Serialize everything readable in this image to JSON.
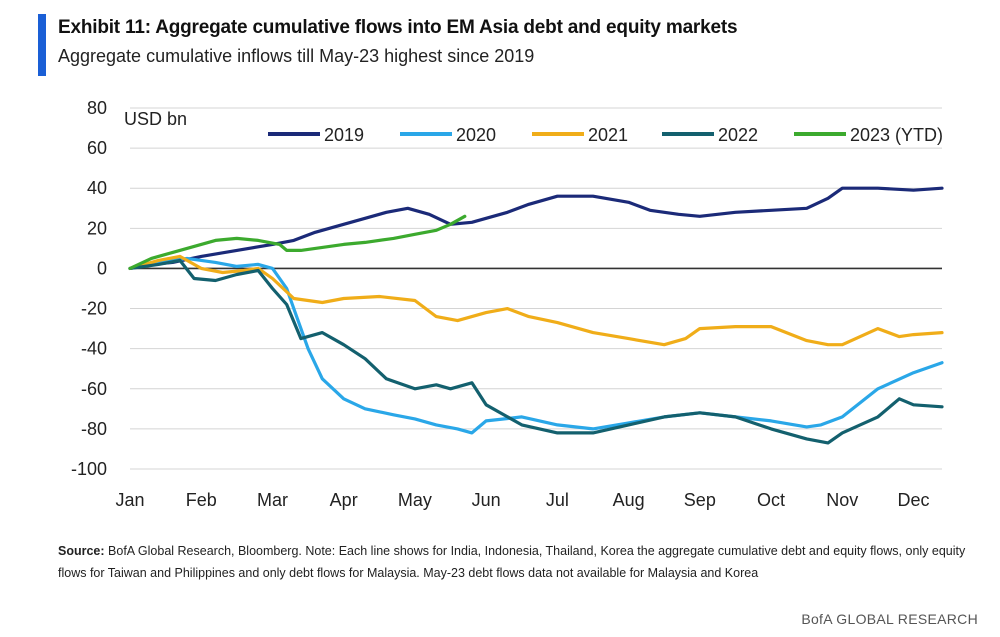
{
  "header": {
    "title": "Exhibit 11: Aggregate cumulative flows into EM Asia debt and equity markets",
    "subtitle": "Aggregate cumulative inflows till May-23 highest since 2019"
  },
  "note": {
    "label": "Source:",
    "text": "BofA Global Research, Bloomberg.  Note: Each line shows for India, Indonesia, Thailand, Korea the aggregate cumulative debt and equity flows, only equity flows for Taiwan and Philippines and only debt flows for Malaysia. May-23 debt flows data not available for Malaysia and Korea"
  },
  "footer": {
    "brand": "BofA GLOBAL RESEARCH"
  },
  "colors": {
    "accent": "#1a5fd6"
  },
  "chart_data": {
    "type": "line",
    "title": "Exhibit 11: Aggregate cumulative flows into EM Asia debt and equity markets",
    "ylabel": "USD bn",
    "xlabel": "",
    "ylim": [
      -100,
      80
    ],
    "yticks": [
      80,
      60,
      40,
      20,
      0,
      -20,
      -40,
      -60,
      -80,
      -100
    ],
    "xlim": [
      0,
      11.4
    ],
    "categories": [
      "Jan",
      "Feb",
      "Mar",
      "Apr",
      "May",
      "Jun",
      "Jul",
      "Aug",
      "Sep",
      "Oct",
      "Nov",
      "Dec"
    ],
    "legend_position": "top",
    "series": [
      {
        "name": "2019",
        "color": "#1b2a78",
        "x": [
          0,
          0.3,
          0.6,
          1.0,
          1.5,
          2.0,
          2.3,
          2.6,
          3.0,
          3.3,
          3.6,
          3.9,
          4.2,
          4.5,
          4.8,
          5.0,
          5.3,
          5.6,
          6.0,
          6.5,
          7.0,
          7.3,
          7.7,
          8.0,
          8.5,
          9.0,
          9.5,
          9.8,
          10.0,
          10.5,
          11.0,
          11.4
        ],
        "y": [
          0,
          2,
          3,
          6,
          9,
          12,
          14,
          18,
          22,
          25,
          28,
          30,
          27,
          22,
          23,
          25,
          28,
          32,
          36,
          36,
          33,
          29,
          27,
          26,
          28,
          29,
          30,
          35,
          40,
          40,
          39,
          40
        ]
      },
      {
        "name": "2020",
        "color": "#2aa7e8",
        "x": [
          0,
          0.4,
          0.8,
          1.2,
          1.5,
          1.8,
          2.0,
          2.2,
          2.3,
          2.5,
          2.7,
          3.0,
          3.3,
          3.7,
          4.0,
          4.3,
          4.6,
          4.8,
          5.0,
          5.5,
          6.0,
          6.5,
          7.0,
          7.5,
          8.0,
          8.5,
          9.0,
          9.5,
          9.7,
          10.0,
          10.5,
          11.0,
          11.4
        ],
        "y": [
          0,
          3,
          5,
          3,
          1,
          2,
          0,
          -10,
          -20,
          -40,
          -55,
          -65,
          -70,
          -73,
          -75,
          -78,
          -80,
          -82,
          -76,
          -74,
          -78,
          -80,
          -77,
          -74,
          -72,
          -74,
          -76,
          -79,
          -78,
          -74,
          -60,
          -52,
          -47
        ]
      },
      {
        "name": "2021",
        "color": "#f0ad19",
        "x": [
          0,
          0.4,
          0.7,
          1.0,
          1.3,
          1.6,
          1.8,
          2.0,
          2.3,
          2.7,
          3.0,
          3.5,
          4.0,
          4.3,
          4.6,
          5.0,
          5.3,
          5.6,
          6.0,
          6.5,
          7.0,
          7.5,
          7.8,
          8.0,
          8.5,
          9.0,
          9.5,
          9.8,
          10.0,
          10.5,
          10.8,
          11.0,
          11.4
        ],
        "y": [
          0,
          4,
          6,
          0,
          -2,
          -1,
          0,
          -5,
          -15,
          -17,
          -15,
          -14,
          -16,
          -24,
          -26,
          -22,
          -20,
          -24,
          -27,
          -32,
          -35,
          -38,
          -35,
          -30,
          -29,
          -29,
          -36,
          -38,
          -38,
          -30,
          -34,
          -33,
          -32
        ]
      },
      {
        "name": "2022",
        "color": "#13606e",
        "x": [
          0,
          0.4,
          0.7,
          0.9,
          1.2,
          1.5,
          1.8,
          2.0,
          2.2,
          2.4,
          2.7,
          3.0,
          3.3,
          3.6,
          4.0,
          4.3,
          4.5,
          4.8,
          5.0,
          5.5,
          6.0,
          6.5,
          7.0,
          7.5,
          8.0,
          8.5,
          9.0,
          9.5,
          9.8,
          10.0,
          10.5,
          10.8,
          11.0,
          11.4
        ],
        "y": [
          0,
          2,
          4,
          -5,
          -6,
          -3,
          -1,
          -10,
          -18,
          -35,
          -32,
          -38,
          -45,
          -55,
          -60,
          -58,
          -60,
          -57,
          -68,
          -78,
          -82,
          -82,
          -78,
          -74,
          -72,
          -74,
          -80,
          -85,
          -87,
          -82,
          -74,
          -65,
          -68,
          -69
        ]
      },
      {
        "name": "2023 (YTD)",
        "color": "#3caa2e",
        "x": [
          0,
          0.3,
          0.6,
          0.9,
          1.2,
          1.5,
          1.8,
          2.1,
          2.2,
          2.4,
          2.6,
          3.0,
          3.3,
          3.7,
          4.0,
          4.3,
          4.5,
          4.7
        ],
        "y": [
          0,
          5,
          8,
          11,
          14,
          15,
          14,
          12,
          9,
          9,
          10,
          12,
          13,
          15,
          17,
          19,
          22,
          26
        ]
      }
    ]
  }
}
